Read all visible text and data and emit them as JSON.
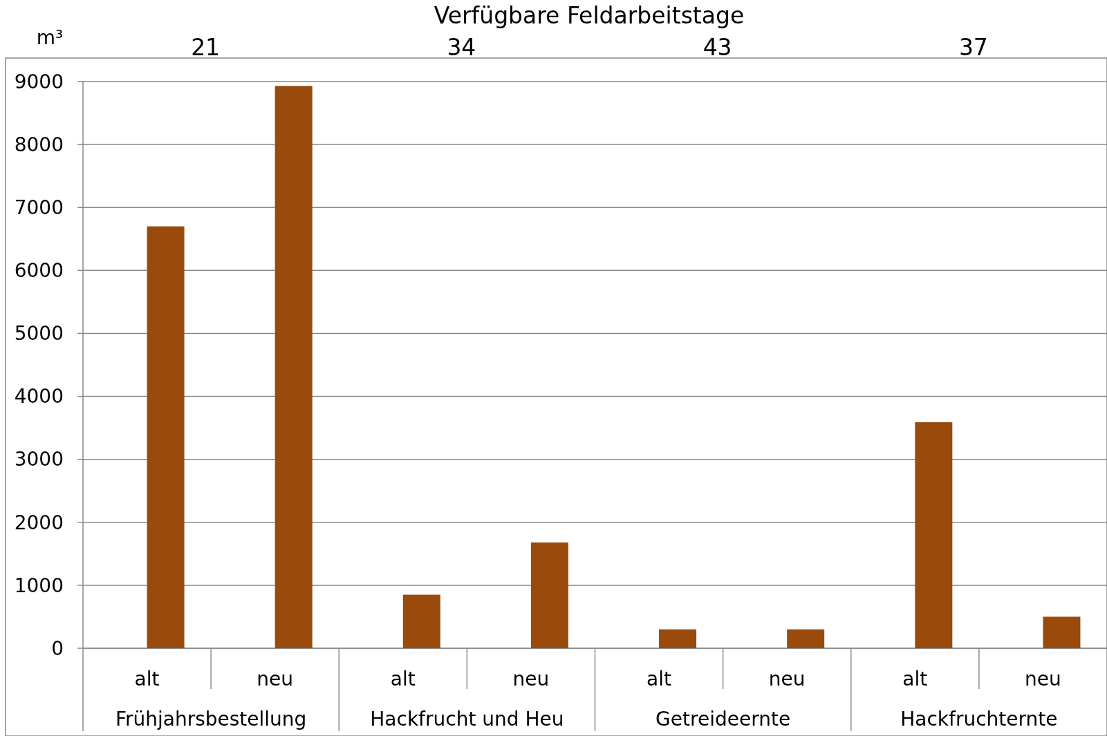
{
  "chart_data": {
    "type": "bar",
    "title": "Verfügbare Feldarbeitstage",
    "ylabel": "m³",
    "categories": [
      "alt",
      "neu",
      "alt",
      "neu",
      "alt",
      "neu",
      "alt",
      "neu"
    ],
    "values": [
      6700,
      8930,
      850,
      1680,
      300,
      300,
      3590,
      500
    ],
    "color": "#9a4a0a",
    "ylim": [
      0,
      9000
    ],
    "yticks": [
      0,
      1000,
      2000,
      3000,
      4000,
      5000,
      6000,
      7000,
      8000,
      9000
    ],
    "grid": "y",
    "annotations": [
      "Frühjahrsbestellung",
      "Hackfrucht und Heu",
      "Getreideernte",
      "Hackfruchternte",
      "21",
      "34",
      "43",
      "37"
    ]
  }
}
